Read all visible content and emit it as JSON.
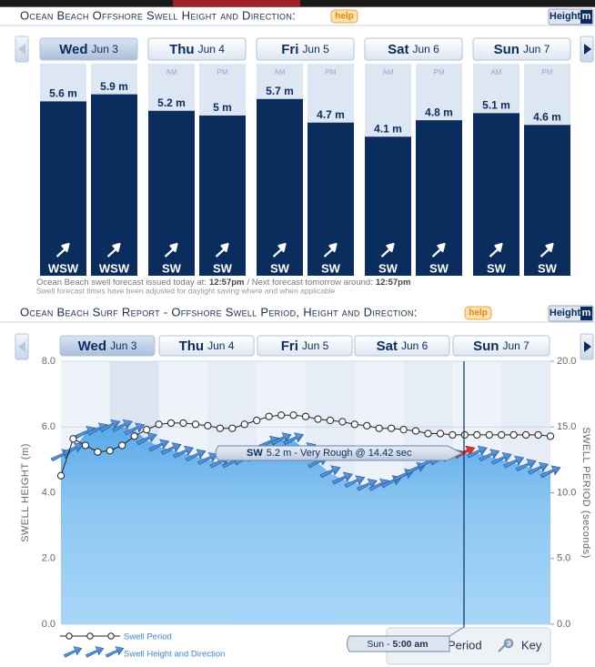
{
  "chart_data": [
    {
      "type": "bar",
      "title": "Ocean Beach Offshore Swell Height and Direction:",
      "help": "help",
      "unit_button": {
        "label": "Height",
        "unit": "m"
      },
      "days": [
        {
          "day": "Wed",
          "date": "Jun 3"
        },
        {
          "day": "Thu",
          "date": "Jun 4"
        },
        {
          "day": "Fri",
          "date": "Jun 5"
        },
        {
          "day": "Sat",
          "date": "Jun 6"
        },
        {
          "day": "Sun",
          "date": "Jun 7"
        }
      ],
      "periods": [
        null,
        null,
        "AM",
        "PM",
        "AM",
        "PM",
        "AM",
        "PM",
        "AM",
        "PM"
      ],
      "values": [
        5.6,
        5.9,
        5.2,
        5,
        5.7,
        4.7,
        4.1,
        4.8,
        5.1,
        4.6
      ],
      "value_labels": [
        "5.6 m",
        "5.9 m",
        "5.2 m",
        "5 m",
        "5.7 m",
        "4.7 m",
        "4.1 m",
        "4.8 m",
        "5.1 m",
        "4.6 m"
      ],
      "directions": [
        "WSW",
        "WSW",
        "SW",
        "SW",
        "SW",
        "SW",
        "SW",
        "SW",
        "SW",
        "SW"
      ],
      "color": "#0b2d5e",
      "ylim": [
        -1.8,
        7.2
      ],
      "notes": [
        "Ocean Beach swell forecast issued today at:",
        "12:57pm",
        "/ Next forecast tomorrow around:",
        "12:57pm"
      ],
      "footnote": "Swell forecast times have been adjusted for daylight saving where and when applicable"
    },
    {
      "type": "line",
      "title": "Ocean Beach Surf Report - Offshore Swell Period, Height and Direction:",
      "help": "help",
      "unit_button": {
        "label": "Height",
        "unit": "m"
      },
      "days": [
        {
          "day": "Wed",
          "date": "Jun 3"
        },
        {
          "day": "Thu",
          "date": "Jun 4"
        },
        {
          "day": "Fri",
          "date": "Jun 5"
        },
        {
          "day": "Sat",
          "date": "Jun 6"
        },
        {
          "day": "Sun",
          "date": "Jun 7"
        }
      ],
      "ylabel": "SWELL HEIGHT (m)",
      "y2label": "SWELL PERIOD (seconds)",
      "ylim": [
        0,
        8
      ],
      "yticks": [
        {
          "value": 0,
          "label": "0.0"
        },
        {
          "value": 2,
          "label": "2.0"
        },
        {
          "value": 4,
          "label": "4.0"
        },
        {
          "value": 6,
          "label": "6.0"
        },
        {
          "value": 8,
          "label": "8.0"
        }
      ],
      "y2lim": [
        0,
        20
      ],
      "y2ticks": [
        {
          "value": 0,
          "label": "0.0"
        },
        {
          "value": 5,
          "label": "5.0"
        },
        {
          "value": 10,
          "label": "10.0"
        },
        {
          "value": 15,
          "label": "15.0"
        },
        {
          "value": 20,
          "label": "20.0"
        }
      ],
      "grid": true,
      "series": [
        {
          "name": "Swell Period",
          "color": "#ffffff",
          "axis": "y2",
          "values": [
            11.3,
            14.1,
            13.6,
            13.1,
            13.2,
            13.6,
            14.3,
            14.8,
            15.2,
            15.3,
            15.3,
            15.2,
            15.1,
            14.9,
            14.9,
            15.2,
            15.5,
            15.8,
            15.9,
            15.9,
            15.8,
            15.6,
            15.5,
            15.4,
            15.2,
            15.1,
            14.9,
            14.9,
            14.8,
            14.7,
            14.5,
            14.5,
            14.4,
            14.4,
            14.4,
            14.4,
            14.4,
            14.4,
            14.4,
            14.4,
            14.3
          ]
        },
        {
          "name": "Swell Height and Direction",
          "color": "#2f7fd6",
          "values": [
            5.1,
            5.3,
            5.8,
            5.9,
            6.0,
            6.0,
            5.9,
            5.6,
            5.4,
            5.3,
            5.2,
            5.1,
            5.0,
            4.9,
            4.9,
            5.0,
            5.2,
            5.5,
            5.6,
            5.6,
            5.3,
            4.9,
            4.6,
            4.4,
            4.3,
            4.2,
            4.2,
            4.3,
            4.5,
            4.7,
            4.9,
            5.0,
            5.1,
            5.2,
            5.2,
            5.1,
            5.0,
            4.9,
            4.8,
            4.7,
            4.6
          ]
        }
      ],
      "tooltip": {
        "direction": "SW",
        "text": "5.2 m - Very Rough @ 14.42 sec"
      },
      "cursor_label": {
        "day": "Sun -",
        "time": "5:00 am"
      },
      "key": [
        "Period",
        "Key"
      ]
    }
  ]
}
